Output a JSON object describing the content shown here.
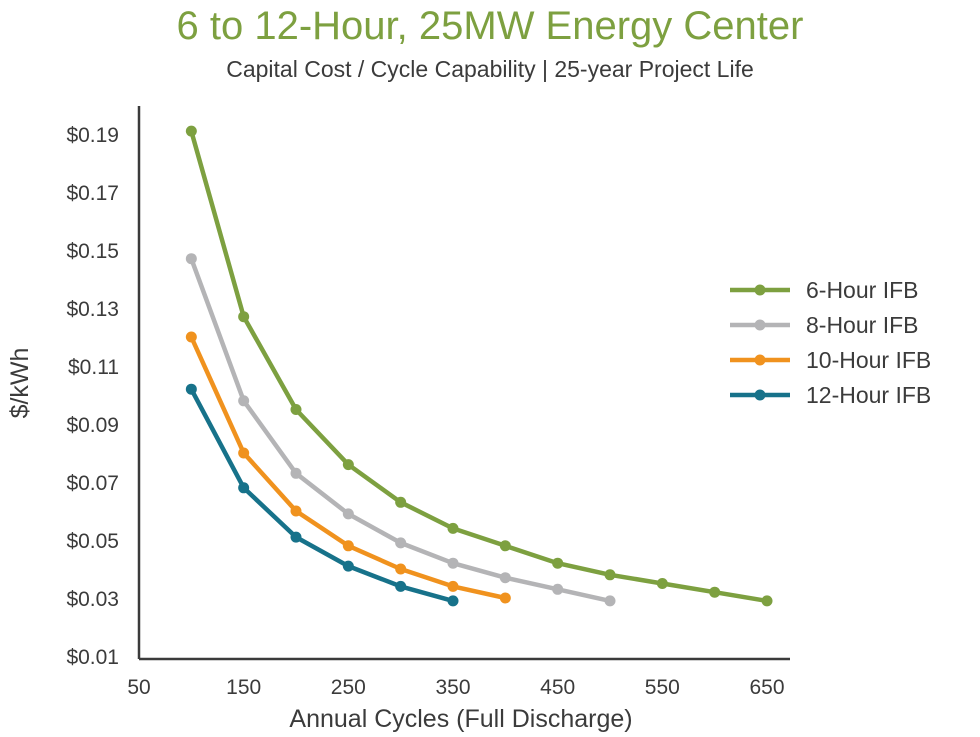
{
  "chart_data": {
    "type": "line",
    "title": "6 to 12-Hour, 25MW Energy Center",
    "subtitle": "Capital Cost / Cycle Capability | 25-year Project Life",
    "xlabel": "Annual Cycles (Full Discharge)",
    "ylabel": "$/kWh",
    "xlim": [
      50,
      650
    ],
    "ylim": [
      0.01,
      0.19
    ],
    "x_ticks": [
      "50",
      "150",
      "250",
      "350",
      "450",
      "550",
      "650"
    ],
    "y_ticks": [
      "$0.19",
      "$0.17",
      "$0.15",
      "$0.13",
      "$0.11",
      "$0.09",
      "$0.07",
      "$0.05",
      "$0.03",
      "$0.01"
    ],
    "grid": false,
    "legend_position": "right",
    "series": [
      {
        "name": "6-Hour IFB",
        "color": "#7da040",
        "x": [
          100,
          150,
          200,
          250,
          300,
          350,
          400,
          450,
          500,
          550,
          600,
          650
        ],
        "y": [
          0.191,
          0.127,
          0.095,
          0.076,
          0.063,
          0.054,
          0.048,
          0.042,
          0.038,
          0.035,
          0.032,
          0.029
        ]
      },
      {
        "name": "8-Hour IFB",
        "color": "#b4b4b6",
        "x": [
          100,
          150,
          200,
          250,
          300,
          350,
          400,
          450,
          500
        ],
        "y": [
          0.147,
          0.098,
          0.073,
          0.059,
          0.049,
          0.042,
          0.037,
          0.033,
          0.029
        ]
      },
      {
        "name": "10-Hour IFB",
        "color": "#f0921e",
        "x": [
          100,
          150,
          200,
          250,
          300,
          350,
          400
        ],
        "y": [
          0.12,
          0.08,
          0.06,
          0.048,
          0.04,
          0.034,
          0.03
        ]
      },
      {
        "name": "12-Hour IFB",
        "color": "#17728a",
        "x": [
          100,
          150,
          200,
          250,
          300,
          350
        ],
        "y": [
          0.102,
          0.068,
          0.051,
          0.041,
          0.034,
          0.029
        ]
      }
    ]
  }
}
